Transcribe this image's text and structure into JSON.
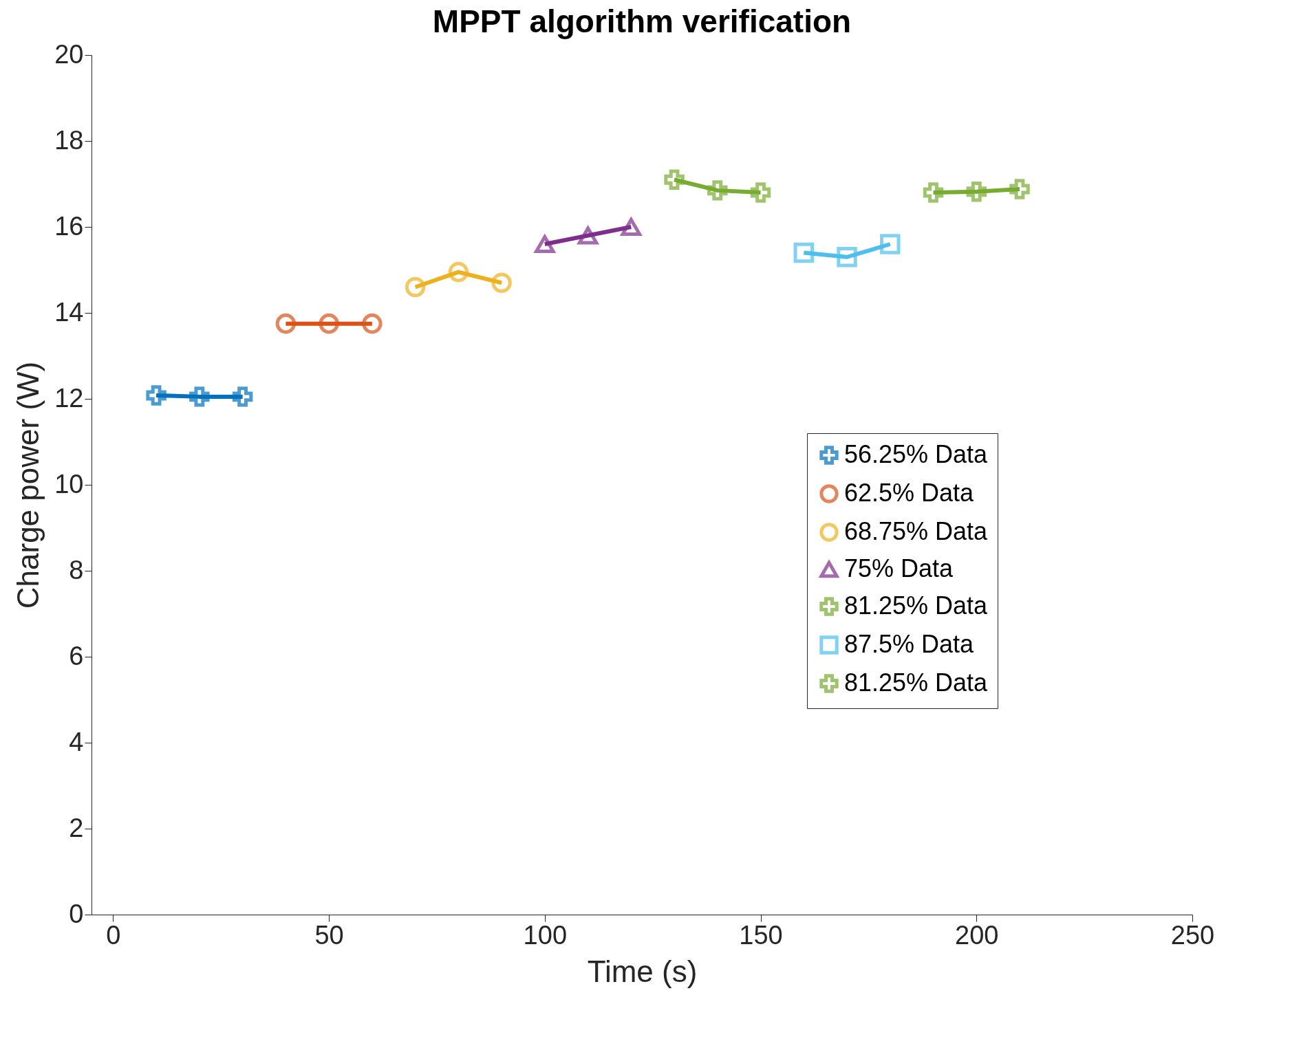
{
  "chart_data": {
    "type": "line",
    "title": "MPPT algorithm verification",
    "xlabel": "Time (s)",
    "ylabel": "Charge power (W)",
    "xlim": [
      -5,
      250
    ],
    "xticks": [
      0,
      50,
      100,
      150,
      200,
      250
    ],
    "ylim": [
      0,
      20
    ],
    "yticks": [
      0,
      2,
      4,
      6,
      8,
      10,
      12,
      14,
      16,
      18,
      20
    ],
    "legend": "right",
    "grid": false,
    "line_style": "solid",
    "series": [
      {
        "name": "56.25% Data",
        "color": "#0072bd",
        "marker": "cross",
        "x": [
          10,
          20,
          30
        ],
        "values": [
          12.08,
          12.05,
          12.05
        ]
      },
      {
        "name": "62.5% Data",
        "color": "#d95319",
        "marker": "circle",
        "x": [
          40,
          50,
          60
        ],
        "values": [
          13.75,
          13.75,
          13.75
        ]
      },
      {
        "name": "68.75% Data",
        "color": "#edb120",
        "marker": "circle",
        "x": [
          70,
          80,
          90
        ],
        "values": [
          14.6,
          14.95,
          14.7
        ]
      },
      {
        "name": "75% Data",
        "color": "#7e2f8e",
        "marker": "triangle",
        "x": [
          100,
          110,
          120
        ],
        "values": [
          15.6,
          15.8,
          16.0
        ]
      },
      {
        "name": "81.25% Data",
        "color": "#77ac30",
        "marker": "cross",
        "x": [
          130,
          140,
          150
        ],
        "values": [
          17.1,
          16.85,
          16.8
        ]
      },
      {
        "name": "87.5% Data",
        "color": "#4dbeee",
        "marker": "square",
        "x": [
          160,
          170,
          180
        ],
        "values": [
          15.4,
          15.3,
          15.6
        ]
      },
      {
        "name": "81.25% Data",
        "color": "#77ac30",
        "marker": "cross",
        "x": [
          190,
          200,
          210
        ],
        "values": [
          16.8,
          16.82,
          16.88
        ]
      }
    ]
  }
}
